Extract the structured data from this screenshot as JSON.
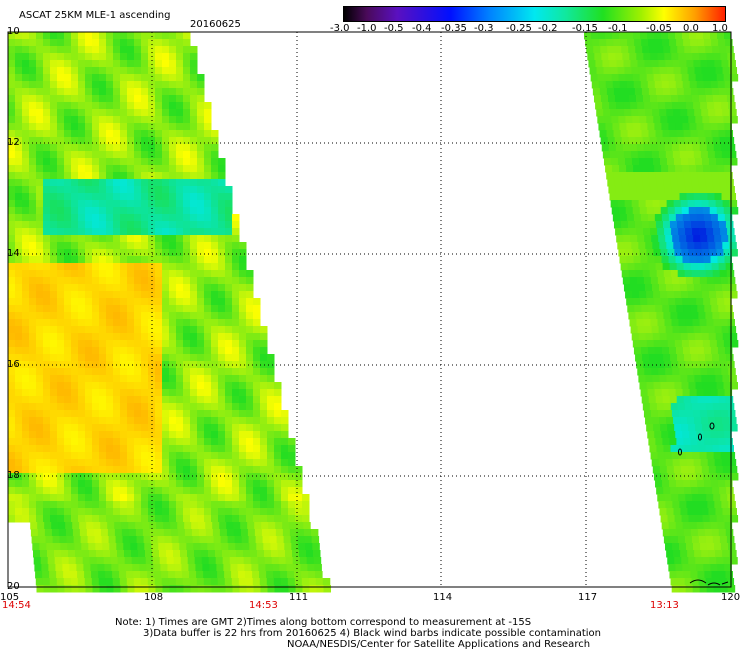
{
  "header": {
    "title": "ASCAT 25KM MLE-1 ascending",
    "date": "20160625"
  },
  "colorbar": {
    "ticks": [
      "-3.0",
      "-1.0",
      "-0.5",
      "-0.4",
      "-0.35",
      "-0.3",
      "-0.25",
      "-0.2",
      "-0.15",
      "-0.1",
      "-0.05",
      "0.0",
      "1.0"
    ]
  },
  "lat_labels": [
    "10",
    "12",
    "14",
    "16",
    "18",
    "20"
  ],
  "lon_labels": [
    "105",
    "108",
    "111",
    "114",
    "117",
    "120"
  ],
  "times": [
    "14:54",
    "14:53",
    "13:13"
  ],
  "notes": [
    "Note: 1) Times are GMT 2)Times along bottom correspond to measurement at -15S",
    "3)Data buffer is 22 hrs from 20160625 4) Black wind barbs indicate possible contamination",
    "NOAA/NESDIS/Center for Satellite Applications and Research"
  ],
  "colors": {
    "green": "#22dd22",
    "yellow": "#ffff00",
    "orange": "#ffb000",
    "cyan": "#00e8e8",
    "blue": "#0010e0",
    "time_red": "#dd0000"
  }
}
